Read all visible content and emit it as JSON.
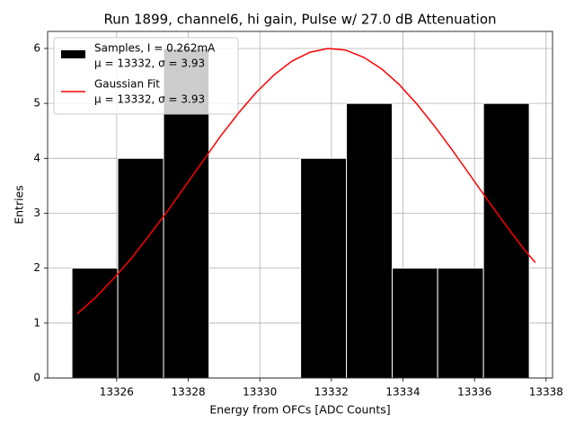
{
  "chart_data": {
    "type": "histogram",
    "title": "Run 1899, channel6, hi gain, Pulse w/ 27.0 dB Attenuation",
    "xlabel": "Energy from OFCs [ADC Counts]",
    "ylabel": "Entries",
    "bins": [
      13324.75,
      13326.03,
      13327.31,
      13328.58,
      13329.86,
      13331.14,
      13332.42,
      13333.7,
      13334.97,
      13336.25,
      13337.53
    ],
    "counts": [
      2,
      4,
      6,
      0,
      0,
      4,
      5,
      2,
      2,
      5
    ],
    "color": "#000000",
    "edgecolor": "#ffffff",
    "name_lines": [
      "Samples, I = 0.262mA",
      "μ = 13332, σ = 3.93"
    ],
    "lines": [
      {
        "name_lines": [
          "Gaussian Fit",
          "μ = 13332, σ = 3.93"
        ],
        "color": "#ff0000",
        "x": [
          13324.9,
          13325.4,
          13325.9,
          13326.4,
          13326.9,
          13327.4,
          13327.9,
          13328.4,
          13328.9,
          13329.4,
          13329.9,
          13330.4,
          13330.9,
          13331.4,
          13331.9,
          13332.4,
          13332.9,
          13333.4,
          13333.9,
          13334.4,
          13334.9,
          13335.4,
          13335.9,
          13336.4,
          13336.9,
          13337.4,
          13337.7
        ],
        "values": [
          1.17,
          1.46,
          1.8,
          2.17,
          2.59,
          3.02,
          3.48,
          3.94,
          4.4,
          4.82,
          5.2,
          5.52,
          5.77,
          5.93,
          6.0,
          5.97,
          5.84,
          5.63,
          5.34,
          4.98,
          4.57,
          4.13,
          3.67,
          3.21,
          2.76,
          2.33,
          2.1
        ]
      }
    ],
    "xlim": [
      13324.07,
      13338.18
    ],
    "ylim": [
      0,
      6.31
    ],
    "xticks": [
      13326,
      13328,
      13330,
      13332,
      13334,
      13336,
      13338
    ],
    "yticks": [
      0,
      1,
      2,
      3,
      4,
      5,
      6
    ],
    "grid": true,
    "legend": "upper left"
  }
}
